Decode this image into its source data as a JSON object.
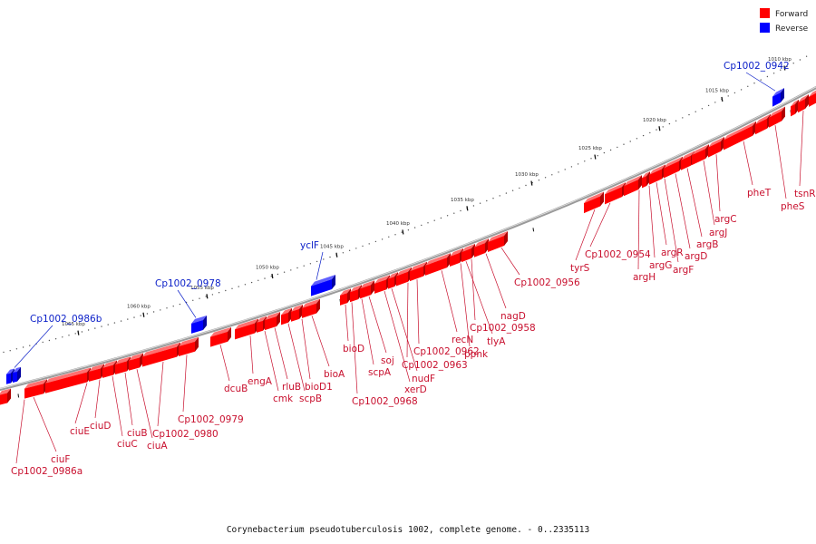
{
  "legend": {
    "items": [
      {
        "label": "Forward",
        "color": "#ff0000"
      },
      {
        "label": "Reverse",
        "color": "#0000ff"
      }
    ]
  },
  "caption": "Corynebacterium pseudotuberculosis 1002, complete genome. - 0..2335113",
  "scale": {
    "unit": "kbp",
    "labels": [
      "1010 kbp",
      "1015 kbp",
      "1020 kbp",
      "1025 kbp",
      "1030 kbp",
      "1035 kbp",
      "1040 kbp",
      "1045 kbp",
      "1050 kbp",
      "1055 kbp",
      "1060 kbp",
      "1065 kbp"
    ]
  },
  "colors": {
    "forward_fill": "#ff0000",
    "forward_dark": "#b00000",
    "forward_light": "#ff7070",
    "reverse_fill": "#0000ff",
    "reverse_dark": "#0000a0",
    "reverse_light": "#6060ff",
    "forward_label": "#c8102e",
    "reverse_label": "#0a1ec8",
    "backbone": "#808080"
  },
  "genes": {
    "forward_labels": [
      "tsnR",
      "pheS",
      "pheT",
      "argC",
      "argJ",
      "argB",
      "argD",
      "argF",
      "argR",
      "argG",
      "argH",
      "Cp1002_0954",
      "tyrS",
      "Cp1002_0956",
      "nagD",
      "Cp1002_0958",
      "tlyA",
      "ppnk",
      "recN",
      "Cp1002_0962",
      "Cp1002_0963",
      "nudF",
      "xerD",
      "soj",
      "scpA",
      "Cp1002_0968",
      "bioD",
      "bioA",
      "bioD1",
      "scpB",
      "rluB",
      "cmk",
      "engA",
      "dcuB",
      "Cp1002_0979",
      "Cp1002_0980",
      "ciuA",
      "ciuB",
      "ciuC",
      "ciuD",
      "ciuE",
      "ciuF",
      "Cp1002_0986a"
    ],
    "reverse_labels": [
      "Cp1002_0942",
      "yclF",
      "Cp1002_0978",
      "Cp1002_0986b"
    ]
  }
}
